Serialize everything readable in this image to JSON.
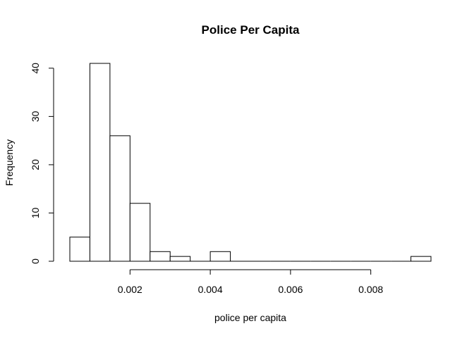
{
  "chart_data": {
    "type": "bar",
    "subtype": "histogram",
    "title": "Police Per Capita",
    "xlabel": "police per capita",
    "ylabel": "Frequency",
    "bin_width": 0.0005,
    "bins": [
      {
        "start": 0.0005,
        "end": 0.001,
        "count": 5
      },
      {
        "start": 0.001,
        "end": 0.0015,
        "count": 41
      },
      {
        "start": 0.0015,
        "end": 0.002,
        "count": 26
      },
      {
        "start": 0.002,
        "end": 0.0025,
        "count": 12
      },
      {
        "start": 0.0025,
        "end": 0.003,
        "count": 2
      },
      {
        "start": 0.003,
        "end": 0.0035,
        "count": 1
      },
      {
        "start": 0.0035,
        "end": 0.004,
        "count": 0
      },
      {
        "start": 0.004,
        "end": 0.0045,
        "count": 2
      },
      {
        "start": 0.0045,
        "end": 0.005,
        "count": 0
      },
      {
        "start": 0.005,
        "end": 0.0055,
        "count": 0
      },
      {
        "start": 0.0055,
        "end": 0.006,
        "count": 0
      },
      {
        "start": 0.006,
        "end": 0.0065,
        "count": 0
      },
      {
        "start": 0.0065,
        "end": 0.007,
        "count": 0
      },
      {
        "start": 0.007,
        "end": 0.0075,
        "count": 0
      },
      {
        "start": 0.0075,
        "end": 0.008,
        "count": 0
      },
      {
        "start": 0.008,
        "end": 0.0085,
        "count": 0
      },
      {
        "start": 0.0085,
        "end": 0.009,
        "count": 0
      },
      {
        "start": 0.009,
        "end": 0.0095,
        "count": 1
      }
    ],
    "xticks": [
      {
        "value": 0.002,
        "label": "0.002"
      },
      {
        "value": 0.004,
        "label": "0.004"
      },
      {
        "value": 0.006,
        "label": "0.006"
      },
      {
        "value": 0.008,
        "label": "0.008"
      }
    ],
    "yticks": [
      {
        "value": 0,
        "label": "0"
      },
      {
        "value": 10,
        "label": "10"
      },
      {
        "value": 20,
        "label": "20"
      },
      {
        "value": 30,
        "label": "30"
      },
      {
        "value": 40,
        "label": "40"
      }
    ],
    "xlim": [
      0.0005,
      0.0095
    ],
    "ylim": [
      0,
      41
    ],
    "grid": false,
    "legend": "none",
    "bar_fill": "#ffffff",
    "bar_stroke": "#000000"
  }
}
